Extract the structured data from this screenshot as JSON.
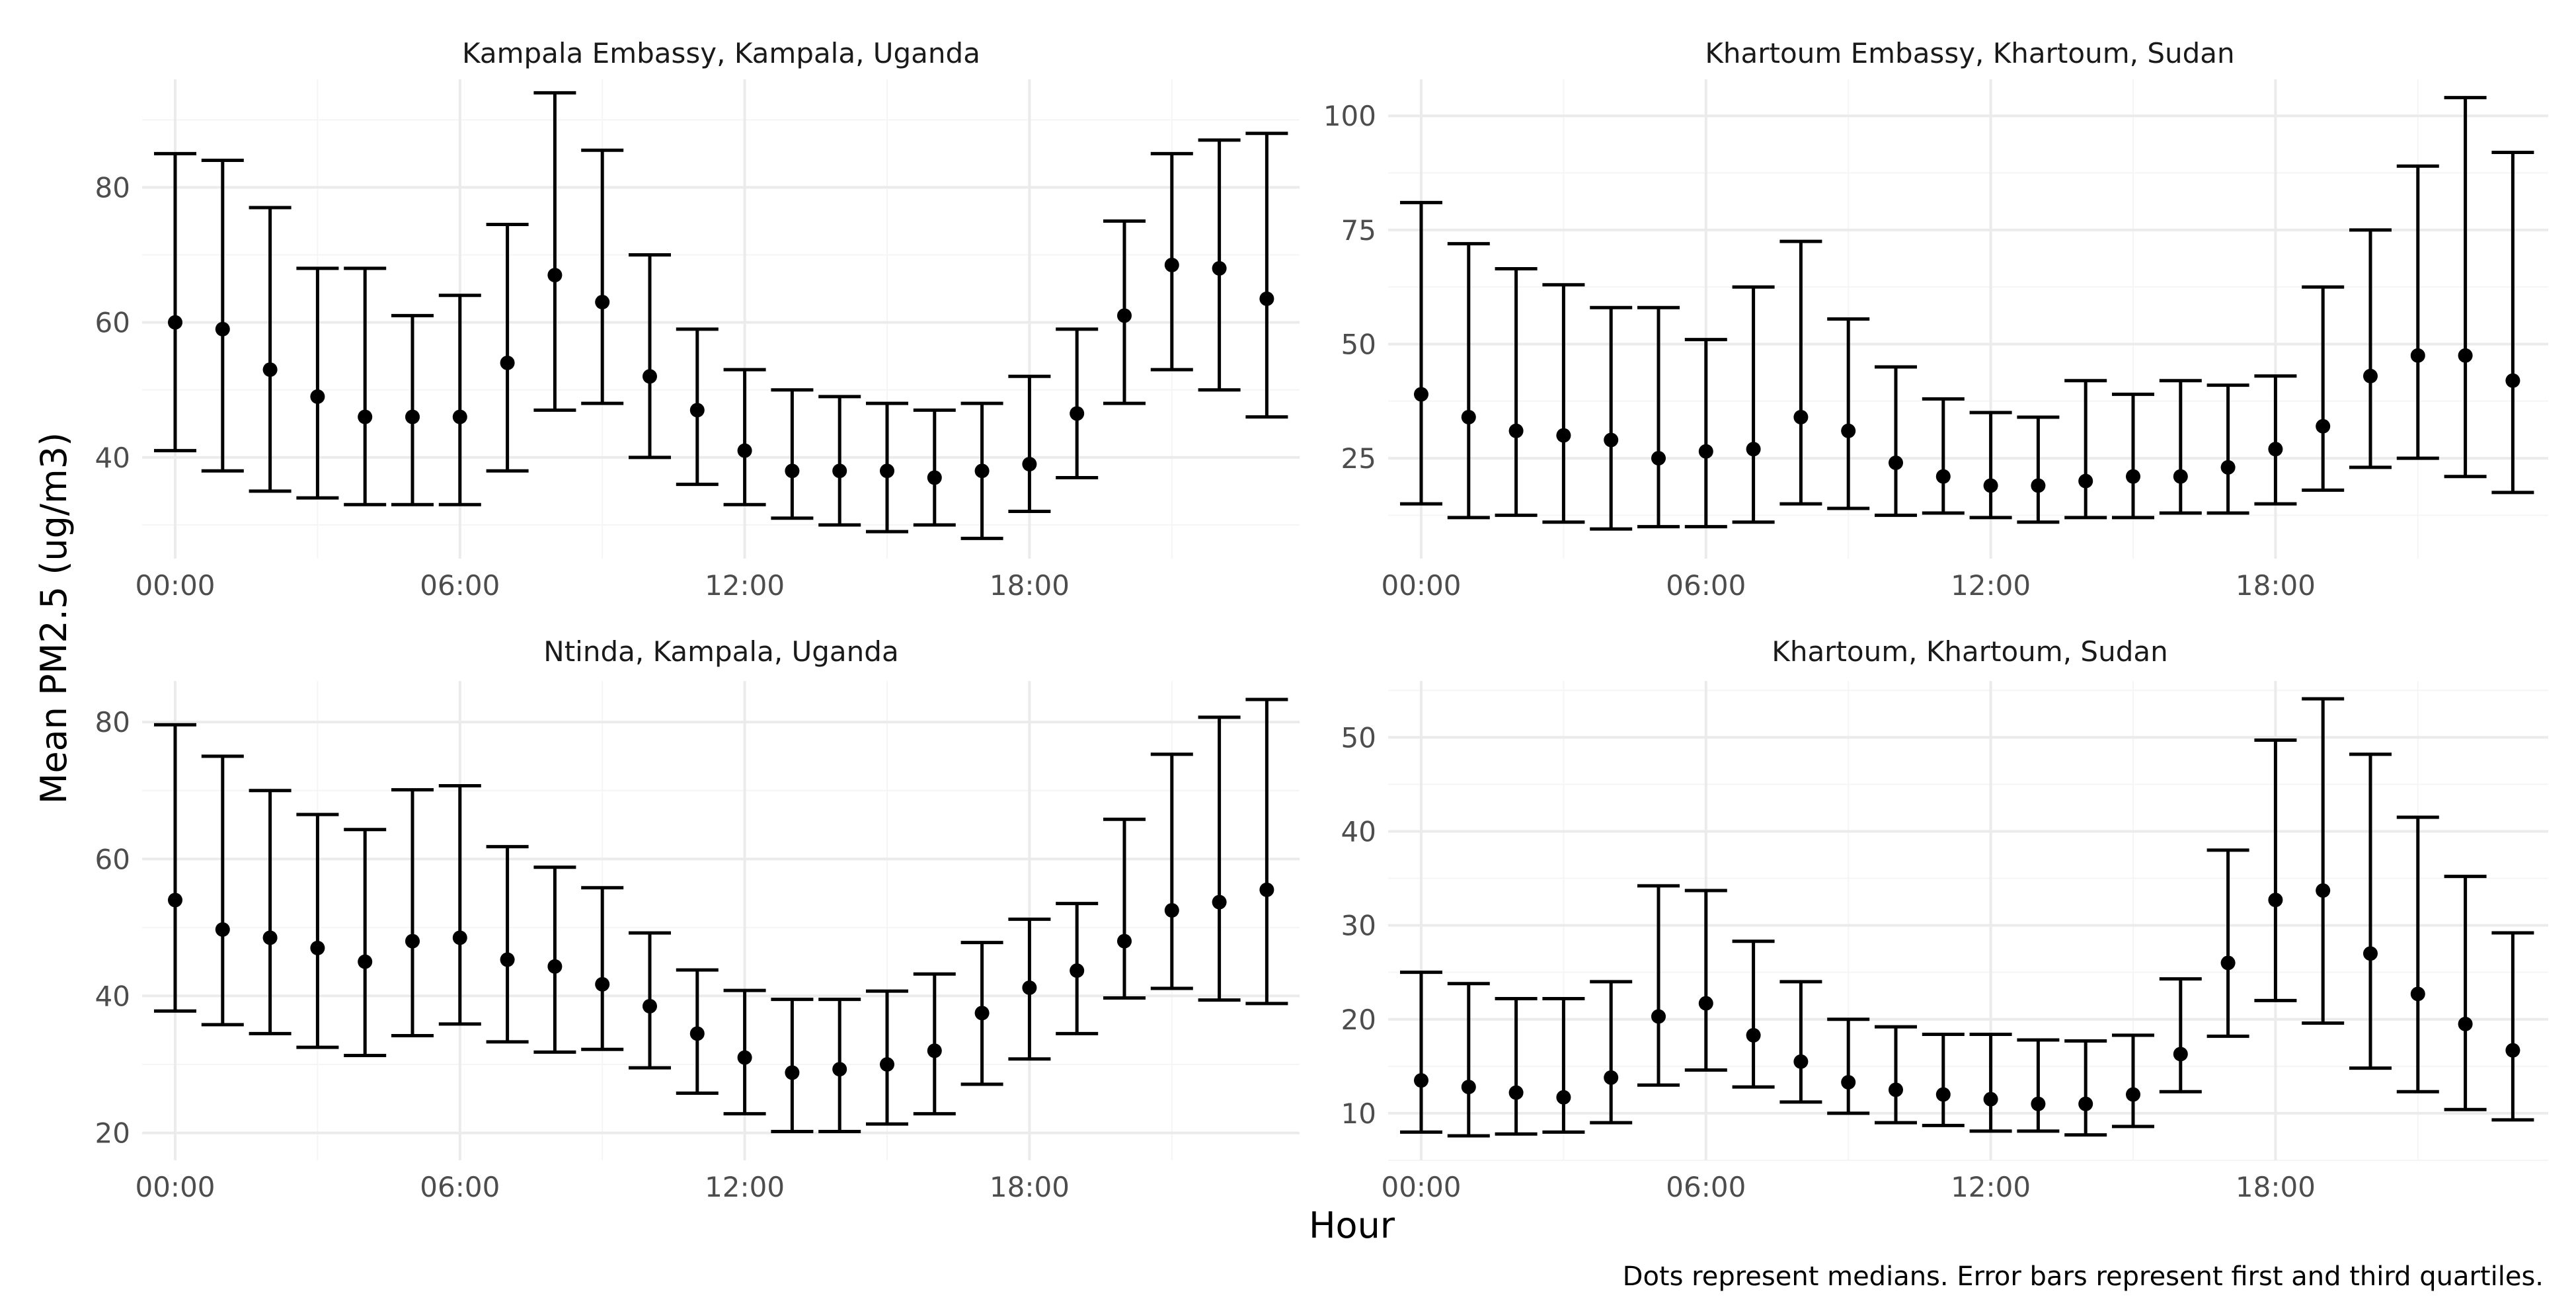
{
  "figure": {
    "ylabel": "Mean PM2.5 (ug/m3)",
    "xlabel": "Hour",
    "caption": "Dots represent medians. Error bars represent first and third quartiles."
  },
  "chart_data": [
    {
      "type": "errorbar",
      "title": "Kampala Embassy, Kampala, Uganda",
      "xlabel": "Hour",
      "ylabel": "Mean PM2.5 (ug/m3)",
      "ylim": [
        25,
        96
      ],
      "y_ticks": [
        40,
        60,
        80
      ],
      "x_ticks": [
        "00:00",
        "06:00",
        "12:00",
        "18:00"
      ],
      "hours": [
        0,
        1,
        2,
        3,
        4,
        5,
        6,
        7,
        8,
        9,
        10,
        11,
        12,
        13,
        14,
        15,
        16,
        17,
        18,
        19,
        20,
        21,
        22,
        23
      ],
      "median": [
        60,
        59,
        53,
        49,
        46,
        46,
        46,
        54,
        67,
        63,
        52,
        47,
        41,
        38,
        38,
        38,
        37,
        38,
        39,
        46.5,
        61,
        68.5,
        68,
        63.5
      ],
      "q1": [
        41,
        38,
        35,
        34,
        33,
        33,
        33,
        38,
        47,
        48,
        40,
        36,
        33,
        31,
        30,
        29,
        30,
        28,
        32,
        37,
        48,
        53,
        50,
        46
      ],
      "q3": [
        85,
        84,
        77,
        68,
        68,
        61,
        64,
        74.5,
        94,
        85.5,
        70,
        59,
        53,
        50,
        49,
        48,
        47,
        48,
        52,
        59,
        75,
        85,
        87,
        88
      ]
    },
    {
      "type": "errorbar",
      "title": "Khartoum Embassy, Khartoum, Sudan",
      "xlabel": "Hour",
      "ylabel": "Mean PM2.5 (ug/m3)",
      "ylim": [
        3,
        108
      ],
      "y_ticks": [
        25,
        50,
        75,
        100
      ],
      "x_ticks": [
        "00:00",
        "06:00",
        "12:00",
        "18:00"
      ],
      "hours": [
        0,
        1,
        2,
        3,
        4,
        5,
        6,
        7,
        8,
        9,
        10,
        11,
        12,
        13,
        14,
        15,
        16,
        17,
        18,
        19,
        20,
        21,
        22,
        23
      ],
      "median": [
        39,
        34,
        31,
        30,
        29,
        25,
        26.5,
        27,
        34,
        31,
        24,
        21,
        19,
        19,
        20,
        21,
        21,
        23,
        27,
        32,
        43,
        47.5,
        47.5,
        42
      ],
      "q1": [
        15,
        12,
        12.5,
        11,
        9.5,
        10,
        10,
        11,
        15,
        14,
        12.5,
        13,
        12,
        11,
        12,
        12,
        13,
        13,
        15,
        18,
        23,
        25,
        21,
        17.5
      ],
      "q3": [
        81,
        72,
        66.5,
        63,
        58,
        58,
        51,
        62.5,
        72.5,
        55.5,
        45,
        38,
        35,
        34,
        42,
        39,
        42,
        41,
        43,
        62.5,
        75,
        89,
        104,
        92
      ]
    },
    {
      "type": "errorbar",
      "title": "Ntinda, Kampala, Uganda",
      "xlabel": "Hour",
      "ylabel": "Mean PM2.5 (ug/m3)",
      "ylim": [
        16,
        86
      ],
      "y_ticks": [
        20,
        40,
        60,
        80
      ],
      "x_ticks": [
        "00:00",
        "06:00",
        "12:00",
        "18:00"
      ],
      "hours": [
        0,
        1,
        2,
        3,
        4,
        5,
        6,
        7,
        8,
        9,
        10,
        11,
        12,
        13,
        14,
        15,
        16,
        17,
        18,
        19,
        20,
        21,
        22,
        23
      ],
      "median": [
        54,
        49.7,
        48.5,
        47,
        45,
        48,
        48.5,
        45.3,
        44.3,
        41.7,
        38.5,
        34.5,
        31,
        28.8,
        29.3,
        30,
        32,
        37.5,
        41.2,
        43.7,
        48,
        52.5,
        53.7,
        55.5
      ],
      "q1": [
        37.8,
        35.8,
        34.5,
        32.5,
        31.3,
        34.2,
        35.9,
        33.3,
        31.8,
        32.2,
        29.5,
        25.8,
        22.8,
        20.2,
        20.2,
        21.3,
        22.8,
        27.1,
        30.8,
        34.5,
        39.7,
        41.1,
        39.4,
        38.9
      ],
      "q3": [
        79.6,
        75,
        70,
        66.5,
        64.3,
        70.1,
        70.7,
        61.8,
        58.8,
        55.8,
        49.2,
        43.8,
        40.8,
        39.5,
        39.5,
        40.7,
        43.2,
        47.8,
        51.2,
        53.5,
        65.8,
        75.3,
        80.7,
        83.3
      ]
    },
    {
      "type": "errorbar",
      "title": "Khartoum, Khartoum, Sudan",
      "xlabel": "Hour",
      "ylabel": "Mean PM2.5 (ug/m3)",
      "ylim": [
        5,
        56
      ],
      "y_ticks": [
        10,
        20,
        30,
        40,
        50
      ],
      "x_ticks": [
        "00:00",
        "06:00",
        "12:00",
        "18:00"
      ],
      "hours": [
        0,
        1,
        2,
        3,
        4,
        5,
        6,
        7,
        8,
        9,
        10,
        11,
        12,
        13,
        14,
        15,
        16,
        17,
        18,
        19,
        20,
        21,
        22,
        23
      ],
      "median": [
        13.5,
        12.8,
        12.2,
        11.7,
        13.8,
        20.3,
        21.7,
        18.3,
        15.5,
        13.3,
        12.5,
        12,
        11.5,
        11,
        11,
        12,
        16.3,
        26,
        32.7,
        33.7,
        27,
        22.7,
        19.5,
        16.7
      ],
      "q1": [
        8,
        7.6,
        7.8,
        8,
        9,
        13,
        14.6,
        12.8,
        11.2,
        10,
        9,
        8.7,
        8.1,
        8.1,
        7.7,
        8.6,
        12.3,
        18.2,
        22,
        19.6,
        14.8,
        12.3,
        10.4,
        9.3
      ],
      "q3": [
        25,
        23.8,
        22.2,
        22.2,
        24,
        34.2,
        33.7,
        28.3,
        24,
        20,
        19.2,
        18.4,
        18.4,
        17.8,
        17.7,
        18.3,
        24.3,
        38,
        49.7,
        54.1,
        48.2,
        41.5,
        35.2,
        29.2
      ]
    }
  ]
}
